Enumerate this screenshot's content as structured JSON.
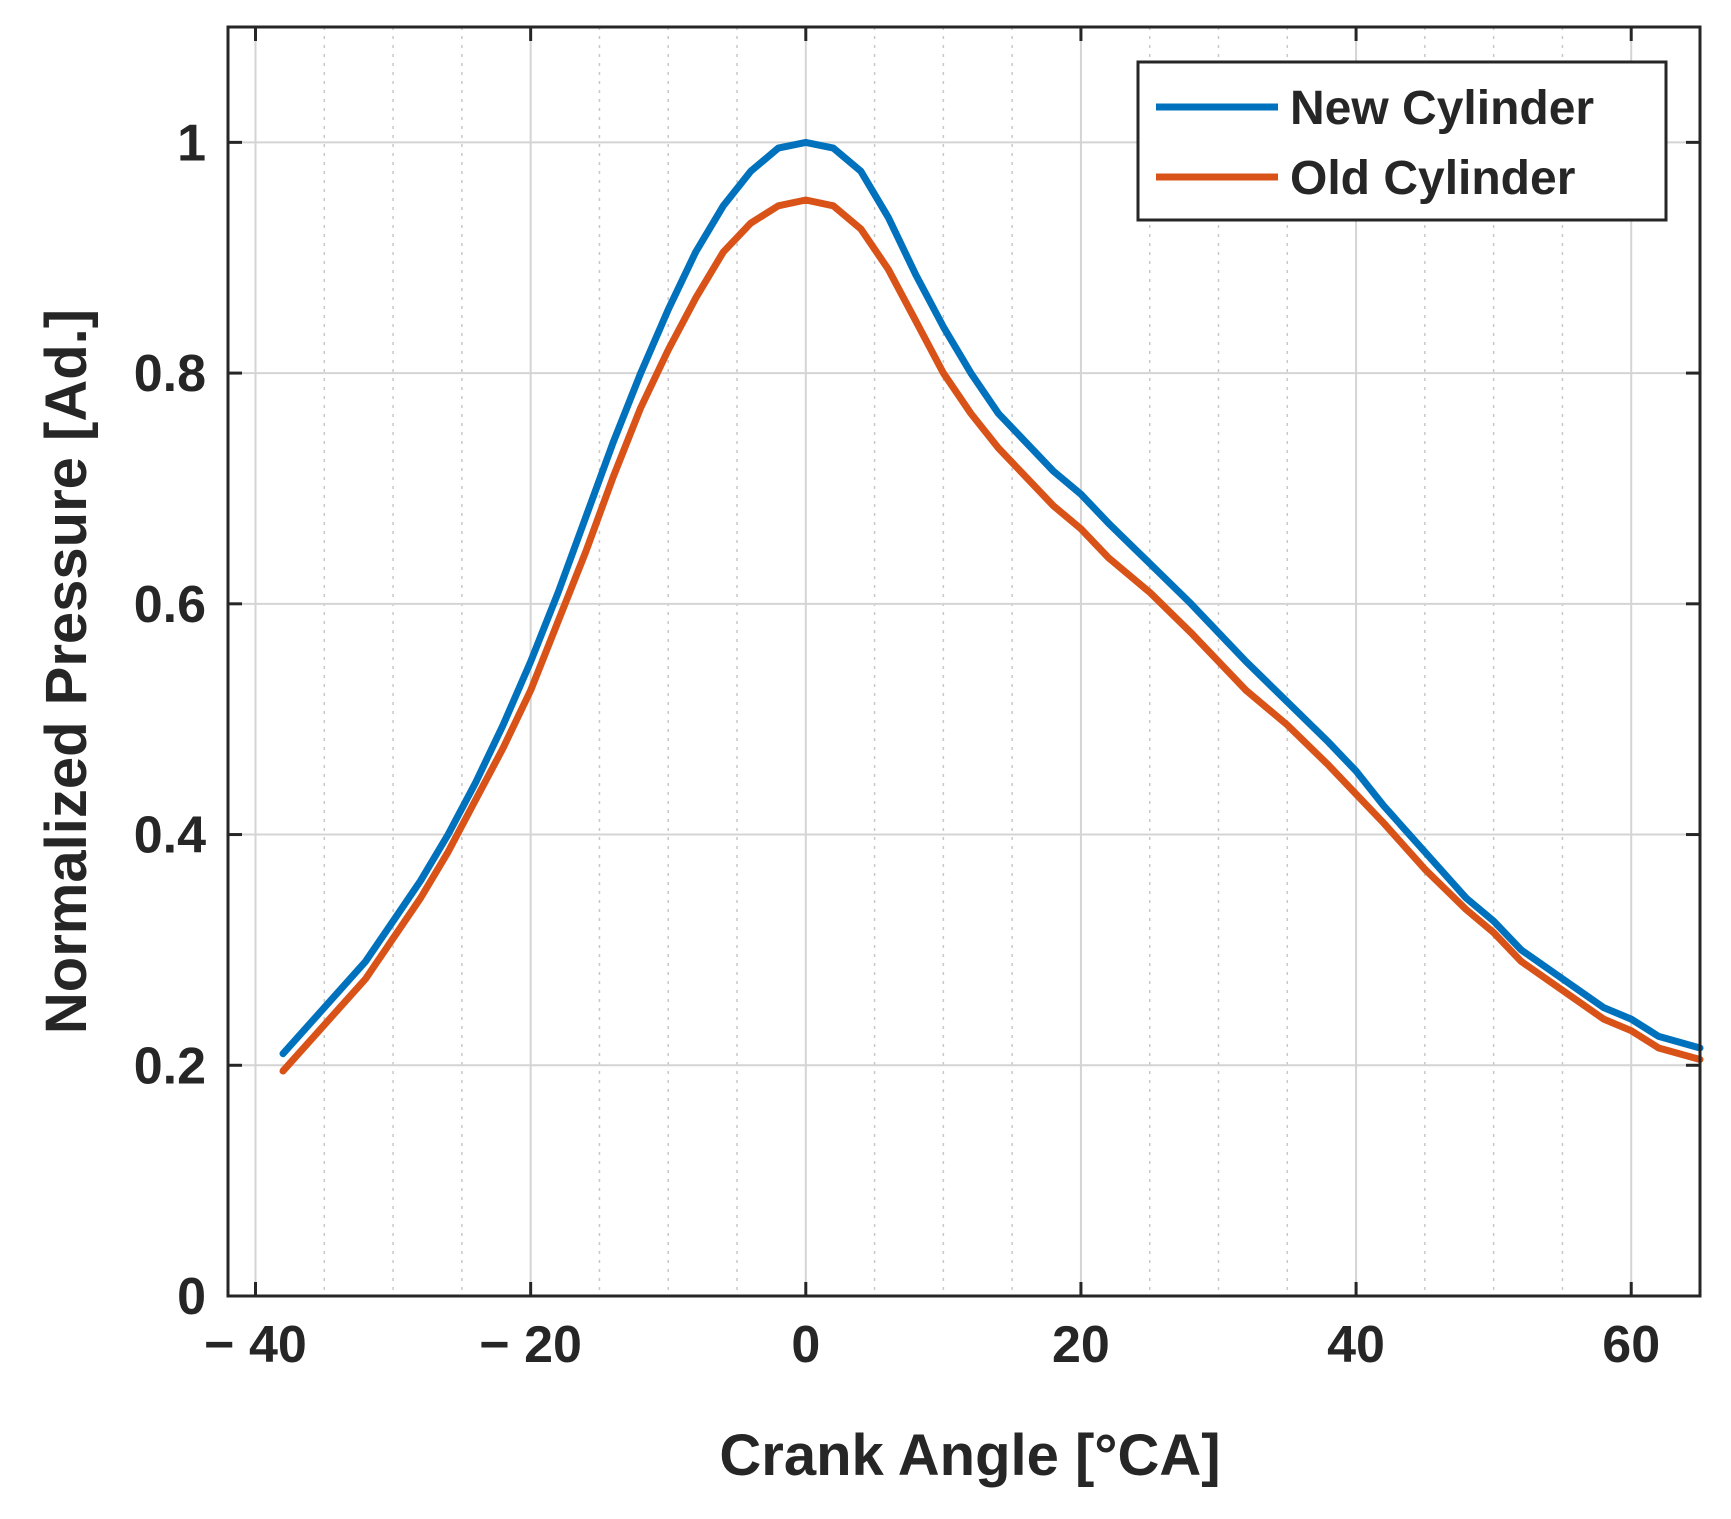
{
  "chart_data": {
    "type": "line",
    "title": "",
    "xlabel": "Crank Angle [°CA]",
    "ylabel": "Normalized Pressure [Ad.]",
    "xlim": [
      -42,
      65
    ],
    "ylim": [
      0,
      1.1
    ],
    "xticks": [
      -40,
      -20,
      0,
      20,
      40,
      60
    ],
    "xtick_labels": [
      "− 40",
      "− 20",
      "0",
      "20",
      "40",
      "60"
    ],
    "yticks": [
      0,
      0.2,
      0.4,
      0.6,
      0.8,
      1
    ],
    "ytick_labels": [
      "0",
      "0.2",
      "0.4",
      "0.6",
      "0.8",
      "1"
    ],
    "grid": true,
    "minor_grid": true,
    "legend_position": "top-right",
    "series": [
      {
        "name": "New Cylinder",
        "color": "#0072BD",
        "x": [
          -38,
          -35,
          -32,
          -30,
          -28,
          -26,
          -24,
          -22,
          -20,
          -18,
          -16,
          -14,
          -12,
          -10,
          -8,
          -6,
          -4,
          -2,
          0,
          2,
          4,
          6,
          8,
          10,
          12,
          14,
          16,
          18,
          20,
          22,
          25,
          28,
          30,
          32,
          35,
          38,
          40,
          42,
          45,
          48,
          50,
          52,
          55,
          58,
          60,
          62,
          65
        ],
        "y": [
          0.21,
          0.25,
          0.29,
          0.325,
          0.36,
          0.4,
          0.445,
          0.495,
          0.55,
          0.61,
          0.675,
          0.74,
          0.8,
          0.855,
          0.905,
          0.945,
          0.975,
          0.995,
          1.0,
          0.995,
          0.975,
          0.935,
          0.885,
          0.84,
          0.8,
          0.765,
          0.74,
          0.715,
          0.695,
          0.67,
          0.635,
          0.6,
          0.575,
          0.55,
          0.515,
          0.48,
          0.455,
          0.425,
          0.385,
          0.345,
          0.325,
          0.3,
          0.275,
          0.25,
          0.24,
          0.225,
          0.215
        ]
      },
      {
        "name": "Old Cylinder",
        "color": "#D95319",
        "x": [
          -38,
          -35,
          -32,
          -30,
          -28,
          -26,
          -24,
          -22,
          -20,
          -18,
          -16,
          -14,
          -12,
          -10,
          -8,
          -6,
          -4,
          -2,
          0,
          2,
          4,
          6,
          8,
          10,
          12,
          14,
          16,
          18,
          20,
          22,
          25,
          28,
          30,
          32,
          35,
          38,
          40,
          42,
          45,
          48,
          50,
          52,
          55,
          58,
          60,
          62,
          65
        ],
        "y": [
          0.195,
          0.235,
          0.275,
          0.31,
          0.345,
          0.385,
          0.43,
          0.475,
          0.525,
          0.585,
          0.645,
          0.71,
          0.77,
          0.82,
          0.865,
          0.905,
          0.93,
          0.945,
          0.95,
          0.945,
          0.925,
          0.89,
          0.845,
          0.8,
          0.765,
          0.735,
          0.71,
          0.685,
          0.665,
          0.64,
          0.61,
          0.575,
          0.55,
          0.525,
          0.495,
          0.46,
          0.435,
          0.41,
          0.37,
          0.335,
          0.315,
          0.29,
          0.265,
          0.24,
          0.23,
          0.215,
          0.205
        ]
      }
    ]
  }
}
